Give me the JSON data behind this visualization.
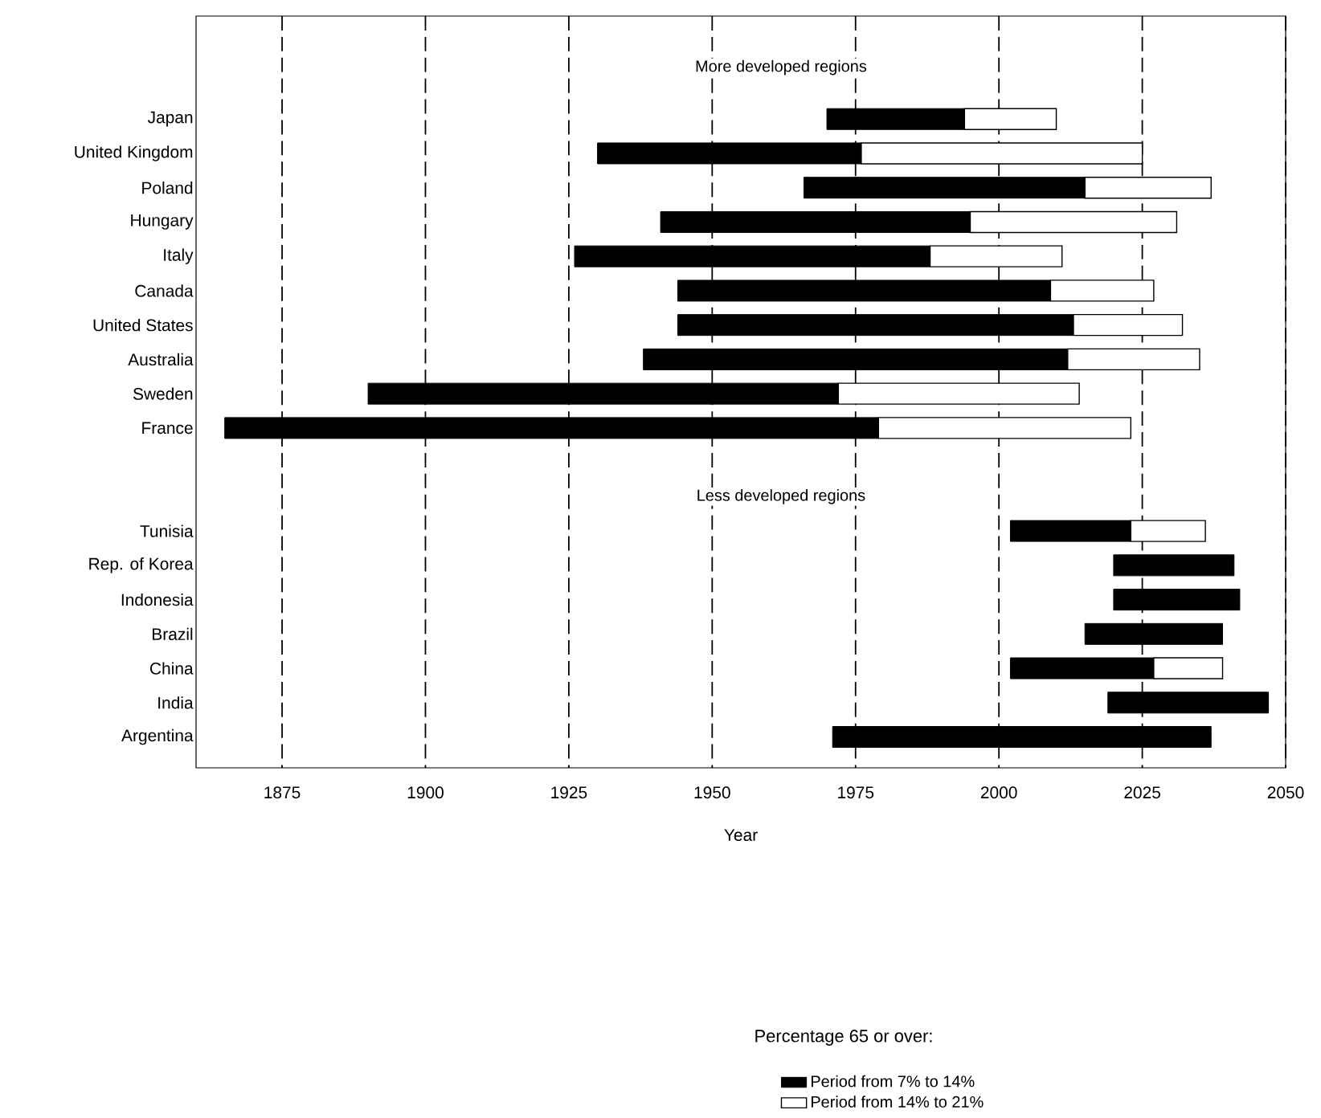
{
  "chart_data": {
    "type": "bar",
    "orientation": "horizontal",
    "categories": [
      "Japan",
      "United Kingdom",
      "Poland",
      "Hungary",
      "Italy",
      "Canada",
      "United States",
      "Australia",
      "Sweden",
      "France",
      null,
      null,
      "Tunisia",
      "Rep. of Korea",
      "Indonesia",
      "Brazil",
      "China",
      "India",
      "Argentina"
    ],
    "series": [
      {
        "name": "Period from 7% to 14%",
        "color": "#000000",
        "base": [
          1970,
          1930,
          1966,
          1941,
          1926,
          1944,
          1944,
          1938,
          1890,
          1865,
          null,
          null,
          2002,
          2020,
          2020,
          2015,
          2002,
          2019,
          1971
        ],
        "values": [
          24,
          46,
          49,
          54,
          62,
          65,
          69,
          74,
          82,
          114,
          null,
          null,
          21,
          21,
          22,
          24,
          25,
          28,
          66
        ]
      },
      {
        "name": "Period from 14% to 21%",
        "color": "#ffffff",
        "base": [
          1994,
          1976,
          2015,
          1995,
          1988,
          2009,
          2013,
          2012,
          1972,
          1979,
          null,
          null,
          2023,
          null,
          null,
          null,
          2027,
          null,
          null
        ],
        "values": [
          16,
          49,
          22,
          36,
          23,
          18,
          19,
          23,
          42,
          44,
          null,
          null,
          13,
          null,
          null,
          null,
          12,
          null,
          null
        ]
      }
    ],
    "xlim": [
      1860,
      2050
    ],
    "xticks": [
      1875,
      1900,
      1925,
      1950,
      1975,
      2000,
      2025,
      2050
    ],
    "xlabel": "Year",
    "legend_title": "Percentage 65 or over:",
    "legend": "bottom",
    "grid": "x",
    "annotations": [
      "More developed regions",
      "Less developed regions"
    ]
  }
}
